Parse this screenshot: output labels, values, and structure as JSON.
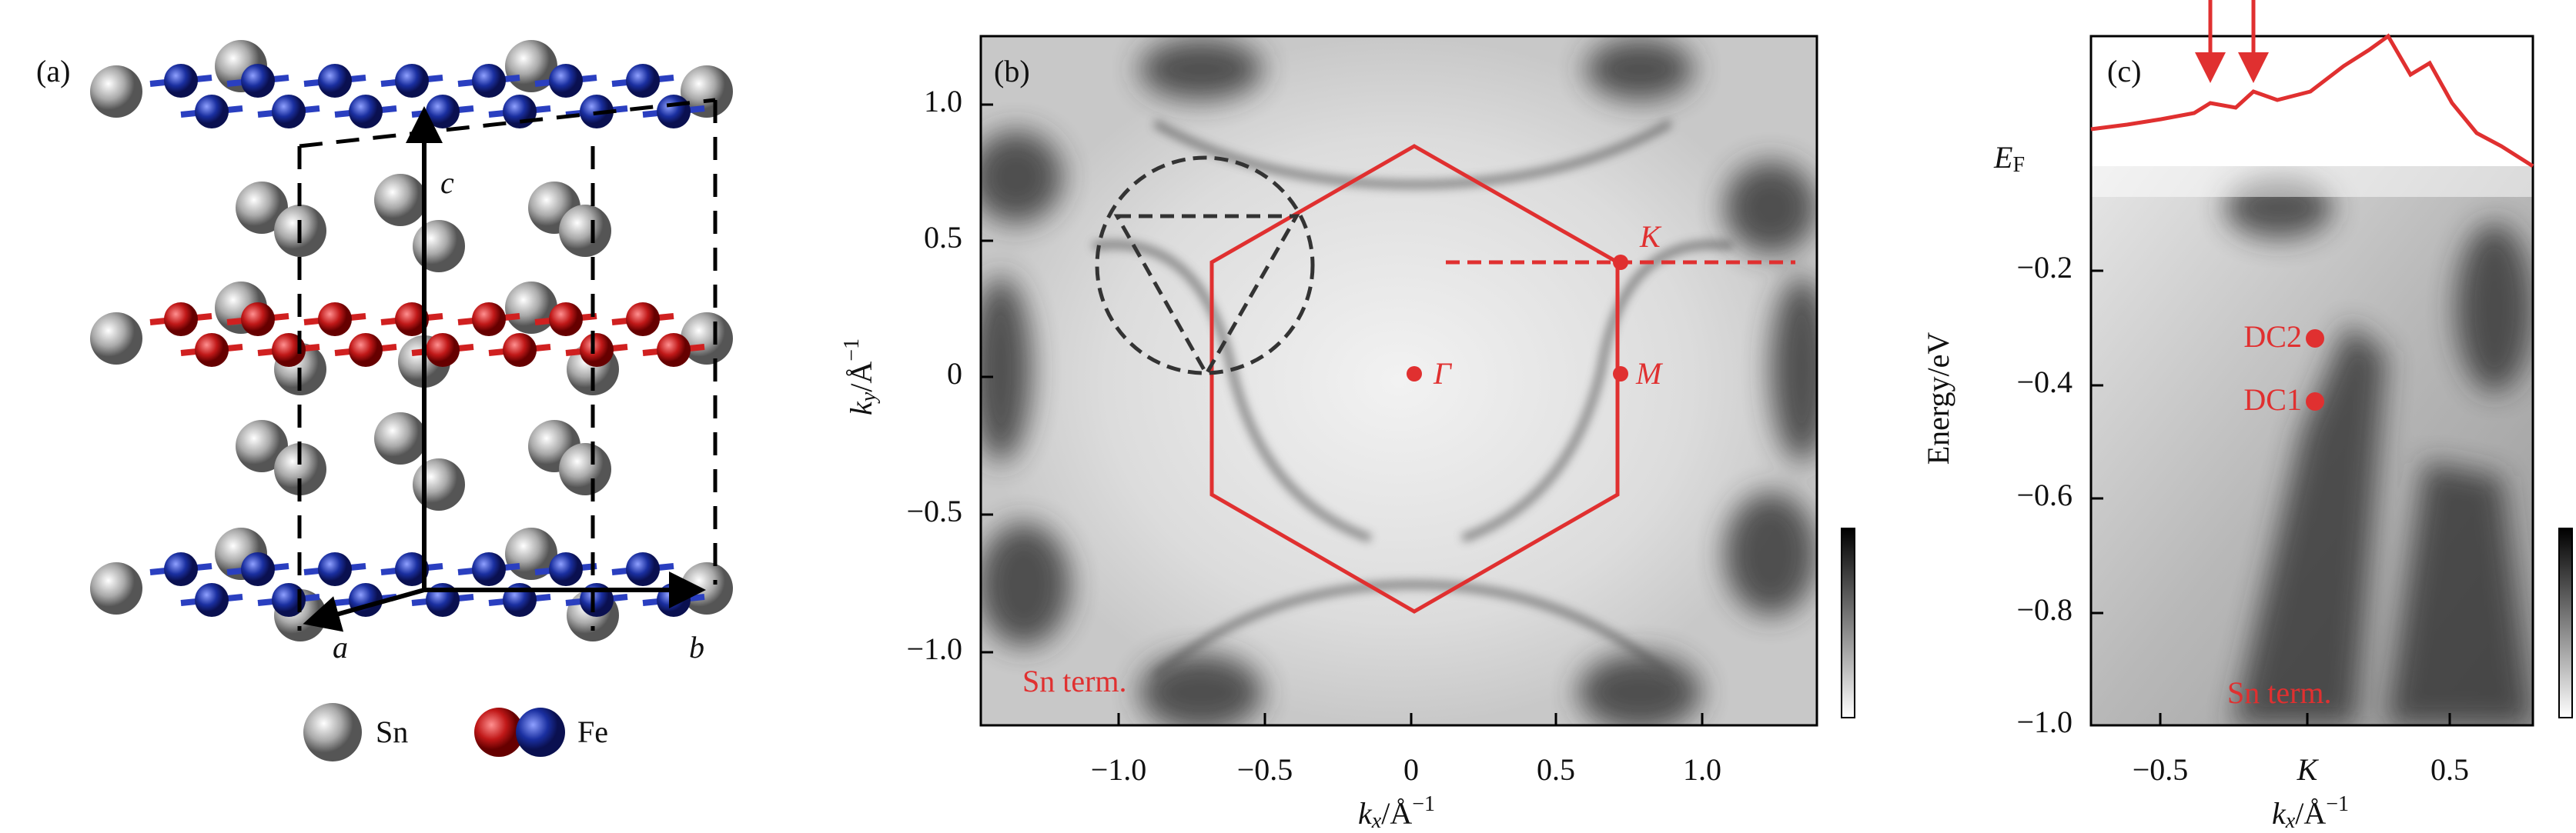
{
  "panels": {
    "a": {
      "label": "(a)",
      "axes": {
        "a": "a",
        "b": "b",
        "c": "c"
      },
      "legend": {
        "sn": "Sn",
        "fe": "Fe"
      }
    },
    "b": {
      "label": "(b)",
      "yticks": [
        "1.0",
        "0.5",
        "0",
        "−0.5",
        "−1.0"
      ],
      "xticks": [
        "−1.0",
        "−0.5",
        "0",
        "0.5",
        "1.0"
      ],
      "xlabel": {
        "var": "k",
        "sub": "x",
        "unit": "/Å",
        "sup": "−1"
      },
      "ylabel": {
        "var": "k",
        "sub": "y",
        "unit": "/Å",
        "sup": "−1"
      },
      "points": {
        "gamma": "Γ",
        "m": "M",
        "k": "K"
      },
      "note": "Sn term."
    },
    "c": {
      "label": "(c)",
      "yticks": [
        "−0.2",
        "−0.4",
        "−0.6",
        "−0.8",
        "−1.0"
      ],
      "xticks": [
        "−0.5",
        "K",
        "0.5"
      ],
      "ef": {
        "var": "E",
        "sub": "F"
      },
      "ylabel": "Energy/eV",
      "xlabel": {
        "var": "k",
        "sub": "x",
        "unit": "/Å",
        "sup": "−1"
      },
      "dc2": "DC2",
      "dc1": "DC1",
      "note": "Sn term."
    }
  }
}
